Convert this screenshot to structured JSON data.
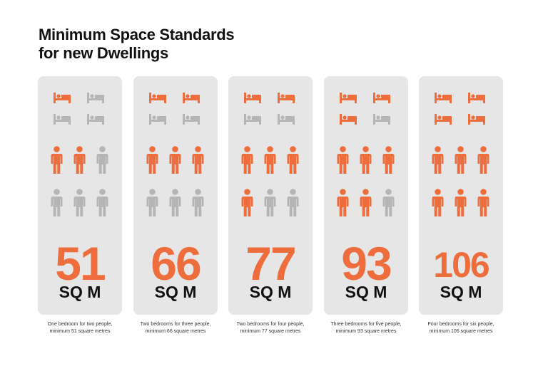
{
  "title_line1": "Minimum Space Standards",
  "title_line2": "for new Dwellings",
  "colors": {
    "accent": "#ee6d3c",
    "inactive": "#b5b5b5",
    "card": "#e6e6e6",
    "text": "#111111"
  },
  "chart_data": {
    "type": "table",
    "title": "Minimum Space Standards for new Dwellings",
    "unit": "SQ M",
    "max_bedrooms": 4,
    "max_people": 6,
    "items": [
      {
        "value": "51",
        "bedrooms": 1,
        "people": 2,
        "caption_line1": "One bedroom for two people,",
        "caption_line2": "minimum 51 square metres"
      },
      {
        "value": "66",
        "bedrooms": 2,
        "people": 3,
        "caption_line1": "Two bedrooms for three people,",
        "caption_line2": "minimum 66 square metres"
      },
      {
        "value": "77",
        "bedrooms": 2,
        "people": 4,
        "caption_line1": "Two bedrooms for four people,",
        "caption_line2": "minimum 77 square metres"
      },
      {
        "value": "93",
        "bedrooms": 3,
        "people": 5,
        "caption_line1": "Three bedrooms for five people,",
        "caption_line2": "minimum 93 square metres"
      },
      {
        "value": "106",
        "bedrooms": 4,
        "people": 6,
        "caption_line1": "Four bedrooms for six people,",
        "caption_line2": "minimum 106 square metres"
      }
    ]
  }
}
